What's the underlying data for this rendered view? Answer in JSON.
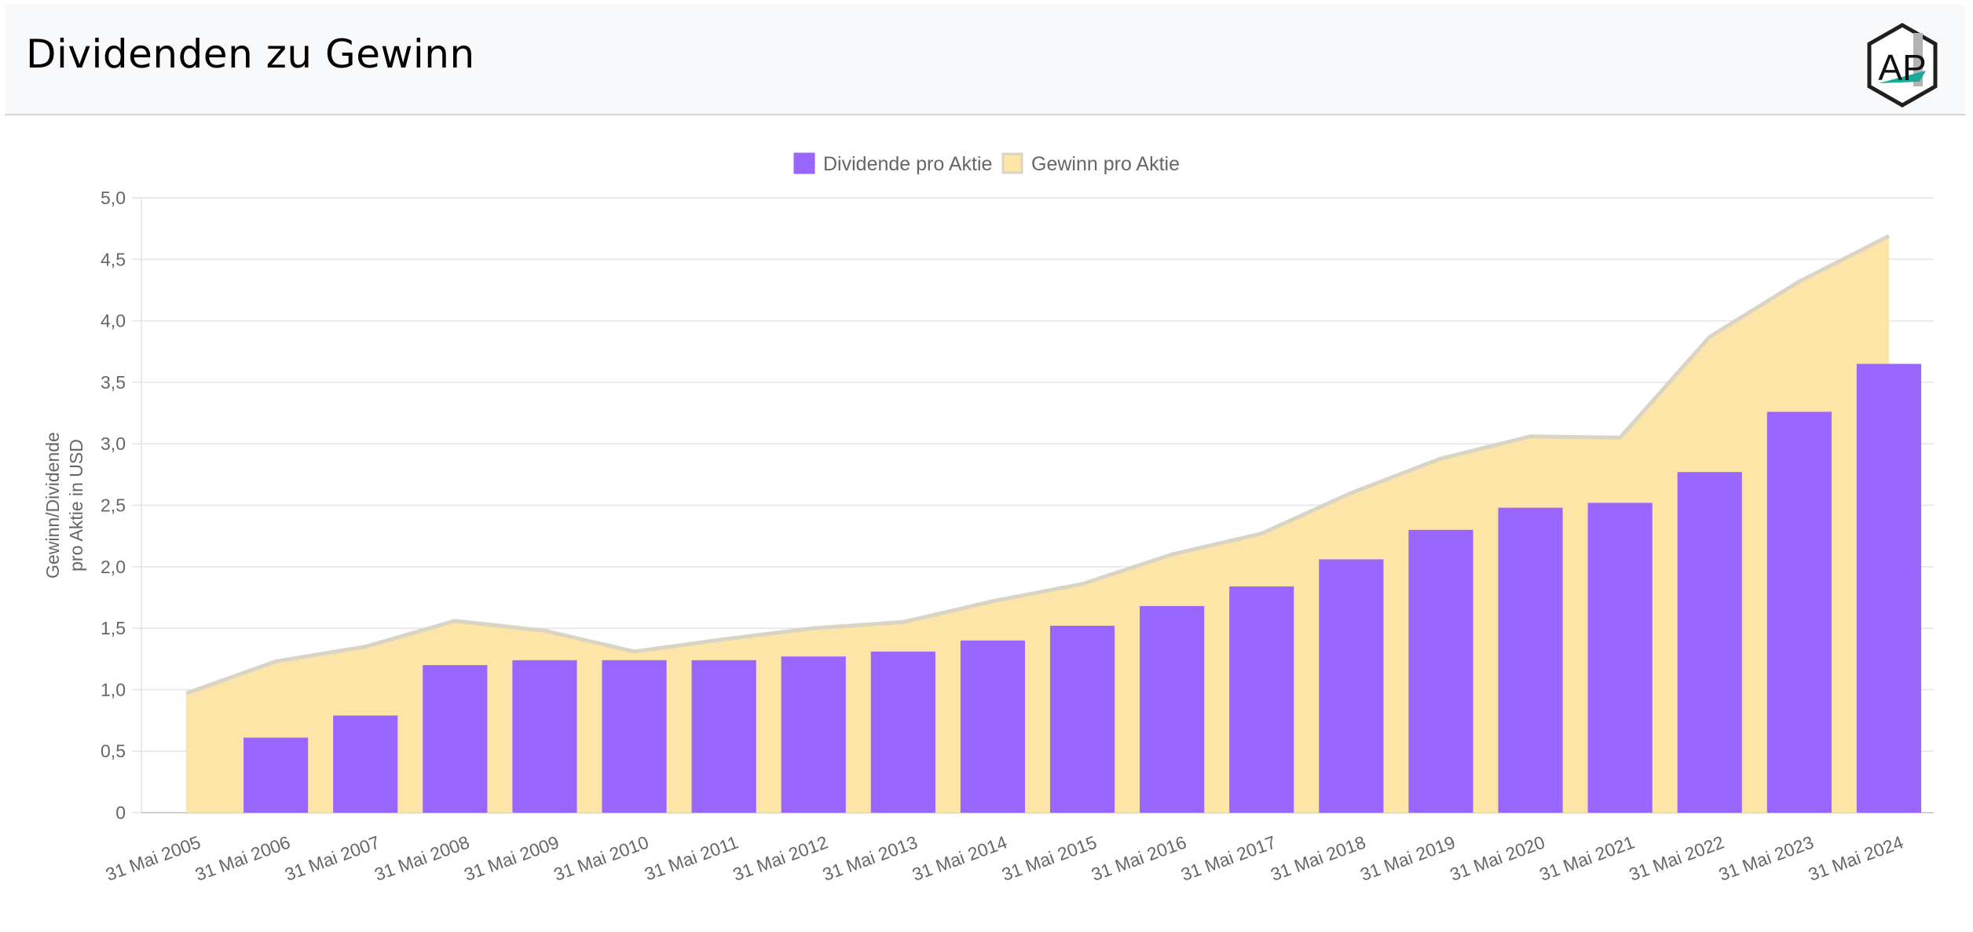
{
  "header": {
    "title": "Dividenden zu Gewinn",
    "logo_text": "AP"
  },
  "colors": {
    "dividend_bar": "#9966ff",
    "earnings_fill": "#fde5a8",
    "earnings_line": "#d9d4c4",
    "grid": "#e4e4e4",
    "axis_text": "#666666"
  },
  "chart_data": {
    "type": "bar",
    "title": "",
    "xlabel": "",
    "ylabel": "Gewinn/Dividende pro Aktie in USD",
    "ylabel_lines": [
      "Gewinn/Dividende",
      "pro Aktie in USD"
    ],
    "ylim": [
      0,
      5
    ],
    "yticks": [
      "0",
      "0,5",
      "1,0",
      "1,5",
      "2,0",
      "2,5",
      "3,0",
      "3,5",
      "4,0",
      "4,5",
      "5,0"
    ],
    "grid": true,
    "legend_position": "top",
    "categories": [
      "31 Mai 2005",
      "31 Mai 2006",
      "31 Mai 2007",
      "31 Mai 2008",
      "31 Mai 2009",
      "31 Mai 2010",
      "31 Mai 2011",
      "31 Mai 2012",
      "31 Mai 2013",
      "31 Mai 2014",
      "31 Mai 2015",
      "31 Mai 2016",
      "31 Mai 2017",
      "31 Mai 2018",
      "31 Mai 2019",
      "31 Mai 2020",
      "31 Mai 2021",
      "31 Mai 2022",
      "31 Mai 2023",
      "31 Mai 2024"
    ],
    "series": [
      {
        "name": "Dividende pro Aktie",
        "kind": "bar",
        "values": [
          0,
          0.61,
          0.79,
          1.2,
          1.24,
          1.24,
          1.24,
          1.27,
          1.31,
          1.4,
          1.52,
          1.68,
          1.84,
          2.06,
          2.3,
          2.48,
          2.52,
          2.77,
          3.26,
          3.65
        ]
      },
      {
        "name": "Gewinn pro Aktie",
        "kind": "area",
        "values": [
          0.97,
          1.23,
          1.35,
          1.56,
          1.48,
          1.31,
          1.41,
          1.5,
          1.55,
          1.72,
          1.86,
          2.1,
          2.27,
          2.6,
          2.88,
          3.06,
          3.05,
          3.87,
          4.32,
          4.69
        ]
      }
    ]
  }
}
